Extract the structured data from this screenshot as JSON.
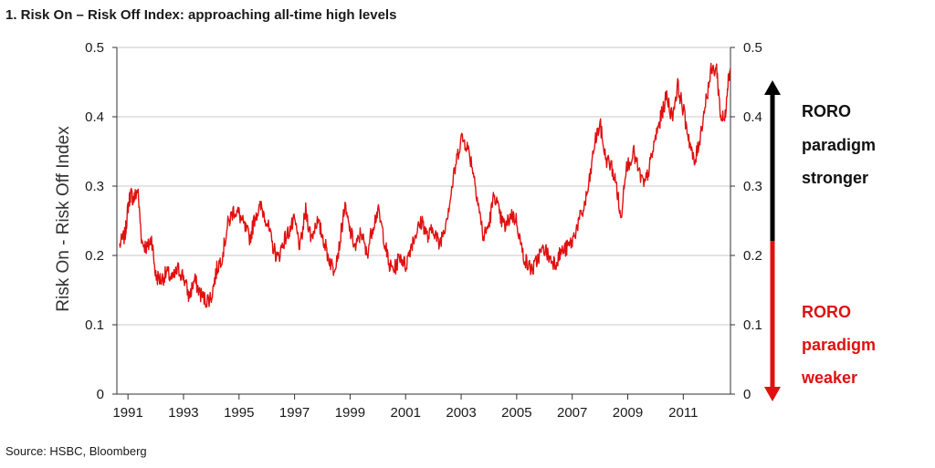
{
  "title": "1. Risk On – Risk Off Index: approaching all-time high levels",
  "source": "Source: HSBC, Bloomberg",
  "colors": {
    "series": "#e01010",
    "up_arrow": "#000000",
    "down_arrow": "#e01010",
    "grid": "#c8c8c8"
  },
  "annotations": {
    "stronger": [
      "RORO",
      "paradigm",
      "stronger"
    ],
    "weaker": [
      "RORO",
      "paradigm",
      "weaker"
    ]
  },
  "chart_data": {
    "type": "line",
    "title": "1. Risk On – Risk Off Index: approaching all-time high levels",
    "ylabel": "Risk On - Risk Off Index",
    "ylim": [
      0,
      0.5
    ],
    "xlim": [
      1990.6,
      2012.7
    ],
    "y_ticks": [
      0,
      0.1,
      0.2,
      0.3,
      0.4,
      0.5
    ],
    "y_tick_labels": [
      "0",
      "0.1",
      "0.2",
      "0.3",
      "0.4",
      "0.5"
    ],
    "x_ticks": [
      1991,
      1993,
      1995,
      1997,
      1999,
      2001,
      2003,
      2005,
      2007,
      2009,
      2011
    ],
    "x_tick_labels": [
      "1991",
      "1993",
      "1995",
      "1997",
      "1999",
      "2001",
      "2003",
      "2005",
      "2007",
      "2009",
      "2011"
    ],
    "secondary_y_axis": true,
    "grid": "horizontal",
    "series": [
      {
        "color": "#e01010",
        "points": [
          [
            1990.7,
            0.215
          ],
          [
            1990.9,
            0.23
          ],
          [
            1991.0,
            0.27
          ],
          [
            1991.1,
            0.29
          ],
          [
            1991.2,
            0.28
          ],
          [
            1991.35,
            0.295
          ],
          [
            1991.5,
            0.22
          ],
          [
            1991.7,
            0.21
          ],
          [
            1991.85,
            0.225
          ],
          [
            1992.0,
            0.17
          ],
          [
            1992.2,
            0.165
          ],
          [
            1992.4,
            0.175
          ],
          [
            1992.6,
            0.165
          ],
          [
            1992.8,
            0.18
          ],
          [
            1993.0,
            0.17
          ],
          [
            1993.2,
            0.14
          ],
          [
            1993.4,
            0.165
          ],
          [
            1993.6,
            0.145
          ],
          [
            1993.8,
            0.135
          ],
          [
            1994.0,
            0.14
          ],
          [
            1994.2,
            0.18
          ],
          [
            1994.4,
            0.2
          ],
          [
            1994.6,
            0.245
          ],
          [
            1994.8,
            0.265
          ],
          [
            1995.0,
            0.26
          ],
          [
            1995.2,
            0.24
          ],
          [
            1995.4,
            0.225
          ],
          [
            1995.6,
            0.26
          ],
          [
            1995.8,
            0.27
          ],
          [
            1996.0,
            0.25
          ],
          [
            1996.2,
            0.215
          ],
          [
            1996.4,
            0.195
          ],
          [
            1996.6,
            0.22
          ],
          [
            1996.8,
            0.235
          ],
          [
            1997.0,
            0.25
          ],
          [
            1997.2,
            0.21
          ],
          [
            1997.4,
            0.265
          ],
          [
            1997.6,
            0.225
          ],
          [
            1997.8,
            0.25
          ],
          [
            1998.0,
            0.23
          ],
          [
            1998.2,
            0.2
          ],
          [
            1998.4,
            0.18
          ],
          [
            1998.6,
            0.21
          ],
          [
            1998.8,
            0.27
          ],
          [
            1999.0,
            0.235
          ],
          [
            1999.2,
            0.21
          ],
          [
            1999.4,
            0.235
          ],
          [
            1999.6,
            0.2
          ],
          [
            1999.8,
            0.24
          ],
          [
            2000.0,
            0.265
          ],
          [
            2000.2,
            0.23
          ],
          [
            2000.4,
            0.185
          ],
          [
            2000.6,
            0.18
          ],
          [
            2000.8,
            0.2
          ],
          [
            2001.0,
            0.185
          ],
          [
            2001.2,
            0.215
          ],
          [
            2001.4,
            0.235
          ],
          [
            2001.6,
            0.25
          ],
          [
            2001.8,
            0.225
          ],
          [
            2002.0,
            0.24
          ],
          [
            2002.2,
            0.215
          ],
          [
            2002.4,
            0.24
          ],
          [
            2002.6,
            0.28
          ],
          [
            2002.8,
            0.33
          ],
          [
            2003.0,
            0.37
          ],
          [
            2003.2,
            0.36
          ],
          [
            2003.4,
            0.33
          ],
          [
            2003.6,
            0.28
          ],
          [
            2003.8,
            0.225
          ],
          [
            2004.0,
            0.245
          ],
          [
            2004.2,
            0.29
          ],
          [
            2004.4,
            0.255
          ],
          [
            2004.6,
            0.24
          ],
          [
            2004.8,
            0.26
          ],
          [
            2005.0,
            0.25
          ],
          [
            2005.2,
            0.205
          ],
          [
            2005.4,
            0.185
          ],
          [
            2005.6,
            0.18
          ],
          [
            2005.8,
            0.2
          ],
          [
            2006.0,
            0.21
          ],
          [
            2006.2,
            0.195
          ],
          [
            2006.4,
            0.19
          ],
          [
            2006.6,
            0.205
          ],
          [
            2006.8,
            0.21
          ],
          [
            2007.0,
            0.22
          ],
          [
            2007.2,
            0.245
          ],
          [
            2007.4,
            0.265
          ],
          [
            2007.6,
            0.3
          ],
          [
            2007.8,
            0.36
          ],
          [
            2008.0,
            0.39
          ],
          [
            2008.2,
            0.34
          ],
          [
            2008.4,
            0.33
          ],
          [
            2008.6,
            0.3
          ],
          [
            2008.75,
            0.25
          ],
          [
            2008.9,
            0.32
          ],
          [
            2009.2,
            0.35
          ],
          [
            2009.4,
            0.32
          ],
          [
            2009.6,
            0.3
          ],
          [
            2009.8,
            0.33
          ],
          [
            2010.0,
            0.37
          ],
          [
            2010.2,
            0.4
          ],
          [
            2010.4,
            0.43
          ],
          [
            2010.6,
            0.4
          ],
          [
            2010.8,
            0.445
          ],
          [
            2011.0,
            0.41
          ],
          [
            2011.2,
            0.37
          ],
          [
            2011.4,
            0.33
          ],
          [
            2011.6,
            0.37
          ],
          [
            2011.8,
            0.42
          ],
          [
            2012.0,
            0.465
          ],
          [
            2012.2,
            0.47
          ],
          [
            2012.35,
            0.4
          ],
          [
            2012.5,
            0.395
          ],
          [
            2012.6,
            0.45
          ],
          [
            2012.7,
            0.47
          ]
        ]
      }
    ]
  }
}
